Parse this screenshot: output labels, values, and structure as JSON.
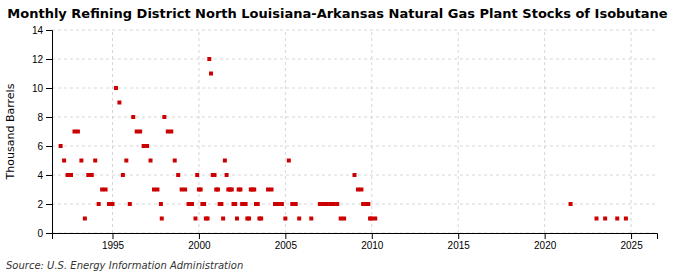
{
  "chart_data": {
    "type": "scatter",
    "title": "Monthly Refining District North Louisiana-Arkansas Natural Gas Plant Stocks of Isobutane",
    "ylabel": "Thousand Barrels",
    "source": "Source: U.S. Energy Information Administration",
    "color": "#cc0000",
    "marker": "square",
    "grid": true,
    "xlim": [
      1991.5,
      2026.5
    ],
    "ylim": [
      0,
      14
    ],
    "xticks": [
      1995,
      2000,
      2005,
      2010,
      2015,
      2020,
      2025
    ],
    "yticks": [
      0,
      2,
      4,
      6,
      8,
      10,
      12,
      14
    ],
    "x": [
      1992.0,
      1992.2,
      1992.4,
      1992.6,
      1992.8,
      1993.0,
      1993.2,
      1993.4,
      1993.6,
      1993.8,
      1994.0,
      1994.2,
      1994.4,
      1994.6,
      1994.8,
      1995.0,
      1995.2,
      1995.4,
      1995.6,
      1995.8,
      1996.0,
      1996.2,
      1996.4,
      1996.6,
      1996.8,
      1997.0,
      1997.2,
      1997.4,
      1997.6,
      1997.8,
      1997.85,
      1998.0,
      1998.2,
      1998.4,
      1998.6,
      1998.8,
      1999.0,
      1999.2,
      1999.4,
      1999.6,
      1999.8,
      1999.9,
      2000.0,
      2000.1,
      2000.2,
      2000.3,
      2000.4,
      2000.5,
      2000.6,
      2000.7,
      2000.8,
      2000.9,
      2001.0,
      2001.1,
      2001.2,
      2001.3,
      2001.4,
      2001.5,
      2001.6,
      2001.7,
      2001.8,
      2001.9,
      2002.0,
      2002.1,
      2002.2,
      2002.3,
      2002.4,
      2002.5,
      2002.6,
      2002.7,
      2002.8,
      2002.9,
      2003.0,
      2003.1,
      2003.2,
      2003.3,
      2003.4,
      2003.5,
      2003.6,
      2004.0,
      2004.2,
      2004.4,
      2004.6,
      2004.8,
      2005.0,
      2005.2,
      2005.4,
      2005.6,
      2005.8,
      2006.5,
      2007.0,
      2007.2,
      2007.4,
      2007.6,
      2007.8,
      2008.0,
      2008.2,
      2008.4,
      2009.0,
      2009.2,
      2009.4,
      2009.5,
      2009.6,
      2009.7,
      2009.8,
      2009.9,
      2010.0,
      2010.2,
      2021.5,
      2023.0,
      2023.5,
      2024.2,
      2024.7
    ],
    "values": [
      6,
      5,
      4,
      4,
      7,
      7,
      5,
      1,
      4,
      4,
      5,
      2,
      3,
      3,
      2,
      2,
      10,
      9,
      4,
      5,
      2,
      8,
      7,
      7,
      6,
      6,
      5,
      3,
      3,
      2,
      1,
      8,
      7,
      7,
      5,
      4,
      3,
      3,
      2,
      2,
      1,
      4,
      3,
      3,
      2,
      2,
      1,
      1,
      12,
      11,
      4,
      4,
      3,
      3,
      2,
      2,
      1,
      5,
      4,
      3,
      3,
      3,
      2,
      2,
      1,
      3,
      3,
      2,
      2,
      2,
      1,
      1,
      3,
      3,
      3,
      2,
      2,
      1,
      1,
      3,
      3,
      2,
      2,
      2,
      1,
      5,
      2,
      2,
      1,
      1,
      2,
      2,
      2,
      2,
      2,
      2,
      1,
      1,
      4,
      3,
      3,
      2,
      2,
      2,
      2,
      1,
      1,
      1,
      2,
      1,
      1,
      1,
      1
    ]
  }
}
